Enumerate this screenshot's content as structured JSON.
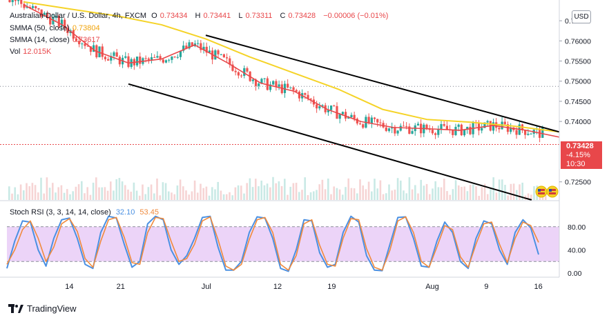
{
  "header": {
    "title": "Australian Dollar / U.S. Dollar, 4h, FXCM",
    "open_label": "O",
    "open": "0.73434",
    "high_label": "H",
    "high": "0.73441",
    "low_label": "L",
    "low": "0.73311",
    "close_label": "C",
    "close": "0.73428",
    "change": "−0.00006 (−0.01%)"
  },
  "indicators": {
    "smma50_label": "SMMA (50, close)",
    "smma50_value": "0.73804",
    "smma14_label": "SMMA (14, close)",
    "smma14_value": "0.73617",
    "vol_label": "Vol",
    "vol_value": "12.015K",
    "rsi_label": "Stoch RSI (3, 3, 14, 14, close)",
    "rsi_k": "32.10",
    "rsi_d": "53.45"
  },
  "currency": "USD",
  "last_price": {
    "price": "0.73428",
    "change_pct": "-4.15%",
    "countdown": "10:30"
  },
  "branding": "TradingView",
  "colors": {
    "smma50": "#f5d327",
    "smma14": "#e8474a",
    "up": "#26a69a",
    "down": "#ef5350",
    "rsi_k": "#4a90e2",
    "rsi_d": "#f08a3c",
    "rsi_band": "#e6c6f5"
  },
  "chart_data": [
    {
      "type": "candlestick",
      "title": "Australian Dollar / U.S. Dollar, 4h, FXCM",
      "xlabel": "",
      "ylabel": "",
      "ylim": [
        0.7205,
        0.7693
      ],
      "y_ticks": [
        "0.76500",
        "0.76000",
        "0.75500",
        "0.75000",
        "0.74500",
        "0.74000",
        "0.72500"
      ],
      "x_ticks": [
        "14",
        "21",
        "Jul",
        "12",
        "19",
        "Aug",
        "9",
        "16"
      ],
      "smma50_path": [
        [
          0.03,
          0.7697
        ],
        [
          0.12,
          0.7678
        ],
        [
          0.2,
          0.7662
        ],
        [
          0.28,
          0.764
        ],
        [
          0.36,
          0.7605
        ],
        [
          0.44,
          0.756
        ],
        [
          0.52,
          0.752
        ],
        [
          0.6,
          0.748
        ],
        [
          0.68,
          0.743
        ],
        [
          0.76,
          0.7405
        ],
        [
          0.84,
          0.7398
        ],
        [
          0.92,
          0.7388
        ],
        [
          1.0,
          0.7374
        ]
      ],
      "smma14_path": [
        [
          0.03,
          0.769
        ],
        [
          0.1,
          0.764
        ],
        [
          0.16,
          0.7575
        ],
        [
          0.22,
          0.7545
        ],
        [
          0.28,
          0.7555
        ],
        [
          0.34,
          0.759
        ],
        [
          0.4,
          0.7545
        ],
        [
          0.46,
          0.7495
        ],
        [
          0.52,
          0.7475
        ],
        [
          0.58,
          0.743
        ],
        [
          0.64,
          0.74
        ],
        [
          0.7,
          0.7385
        ],
        [
          0.76,
          0.7382
        ],
        [
          0.82,
          0.7378
        ],
        [
          0.88,
          0.739
        ],
        [
          0.94,
          0.7378
        ],
        [
          1.0,
          0.7361
        ]
      ],
      "channel_upper": [
        [
          0.36,
          0.7614
        ],
        [
          1.0,
          0.7374
        ]
      ],
      "channel_lower": [
        [
          0.22,
          0.7493
        ],
        [
          0.95,
          0.7205
        ]
      ],
      "price_line": 0.73428,
      "resistance_dotted": 0.7487
    },
    {
      "type": "line",
      "title": "Stoch RSI (3, 3, 14, 14, close)",
      "ylim": [
        0,
        100
      ],
      "y_ticks": [
        "80.00",
        "40.00",
        "0.00"
      ],
      "band": [
        20,
        80
      ],
      "series": [
        {
          "name": "K",
          "values": [
            8,
            55,
            90,
            88,
            40,
            12,
            60,
            92,
            95,
            60,
            15,
            8,
            70,
            98,
            95,
            50,
            10,
            20,
            85,
            98,
            92,
            40,
            15,
            30,
            60,
            96,
            98,
            45,
            5,
            5,
            20,
            70,
            97,
            95,
            60,
            8,
            3,
            40,
            92,
            90,
            35,
            10,
            15,
            70,
            98,
            88,
            30,
            5,
            4,
            50,
            96,
            97,
            60,
            12,
            10,
            55,
            88,
            70,
            20,
            8,
            60,
            90,
            85,
            40,
            15,
            70,
            92,
            78,
            32
          ]
        },
        {
          "name": "D",
          "values": [
            15,
            40,
            75,
            90,
            60,
            20,
            45,
            85,
            94,
            72,
            25,
            10,
            55,
            92,
            96,
            62,
            18,
            15,
            70,
            96,
            94,
            55,
            20,
            25,
            50,
            90,
            97,
            58,
            12,
            5,
            15,
            58,
            92,
            96,
            70,
            15,
            5,
            30,
            85,
            92,
            48,
            15,
            12,
            60,
            94,
            92,
            42,
            10,
            5,
            40,
            90,
            97,
            70,
            20,
            10,
            45,
            82,
            75,
            28,
            10,
            50,
            85,
            88,
            50,
            18,
            60,
            88,
            82,
            53
          ]
        }
      ]
    }
  ]
}
